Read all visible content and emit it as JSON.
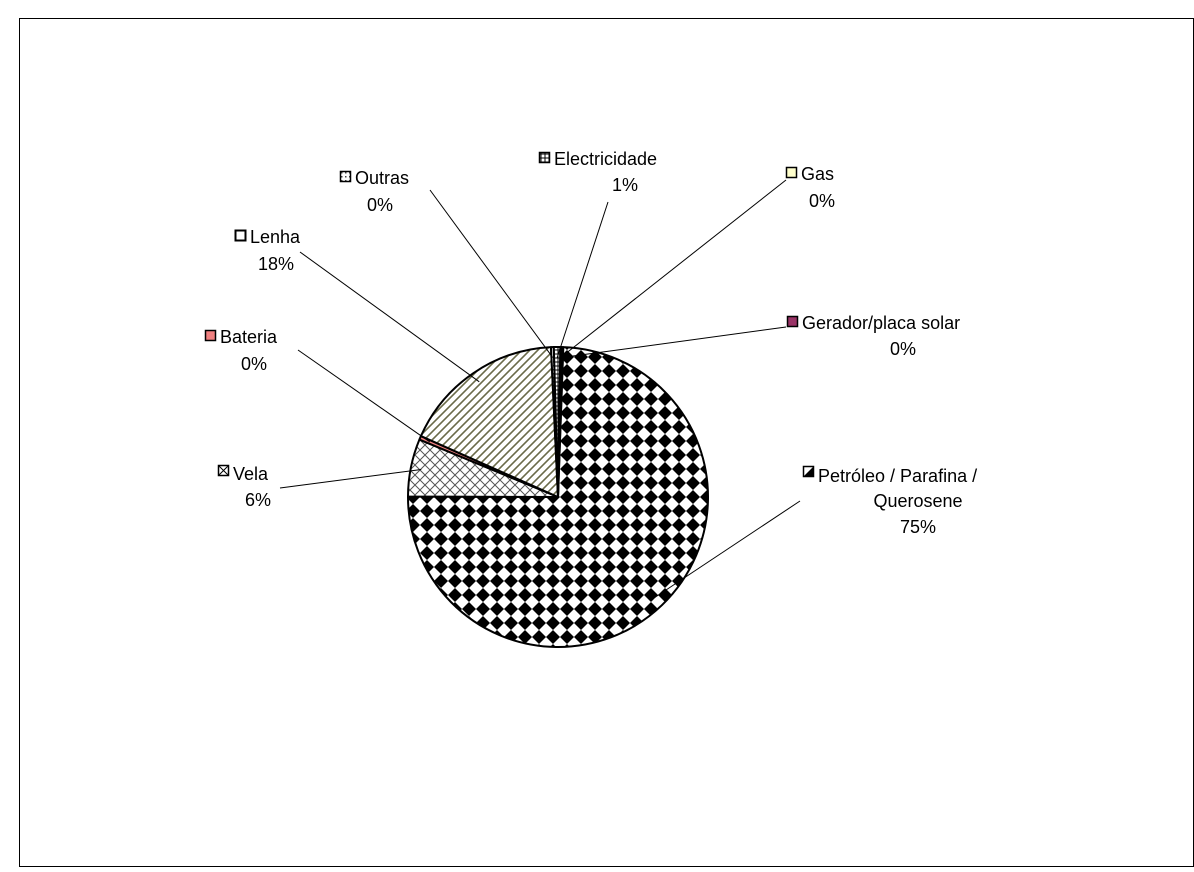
{
  "chart_data": {
    "type": "pie",
    "title": "",
    "slices": [
      {
        "key": "petroleo",
        "line1": "Petróleo / Parafina /",
        "line2": "Querosene",
        "pct_label": "75%",
        "value": 74.5,
        "pattern": "diamond-check",
        "swatch": "half-black"
      },
      {
        "key": "vela",
        "line1": "Vela",
        "pct_label": "6%",
        "value": 6.2,
        "pattern": "cross-hatch",
        "swatch": "x-box"
      },
      {
        "key": "bateria",
        "line1": "Bateria",
        "pct_label": "0%",
        "value": 0.4,
        "pattern": "solid",
        "color": "#f08080",
        "swatch": "solid"
      },
      {
        "key": "lenha",
        "line1": "Lenha",
        "pct_label": "18%",
        "value": 17.6,
        "pattern": "diagonal",
        "swatch": "hollow"
      },
      {
        "key": "outras",
        "line1": "Outras",
        "pct_label": "0%",
        "value": 0.3,
        "pattern": "dots",
        "swatch": "dotted"
      },
      {
        "key": "electricidade",
        "line1": "Electricidade",
        "pct_label": "1%",
        "value": 0.7,
        "pattern": "grid",
        "swatch": "grid"
      },
      {
        "key": "gas",
        "line1": "Gas",
        "pct_label": "0%",
        "value": 0.1,
        "pattern": "solid",
        "color": "#ffffcc",
        "swatch": "solid"
      },
      {
        "key": "gerador",
        "line1": "Gerador/placa solar",
        "pct_label": "0%",
        "value": 0.2,
        "pattern": "solid",
        "color": "#993366",
        "swatch": "solid"
      }
    ]
  }
}
